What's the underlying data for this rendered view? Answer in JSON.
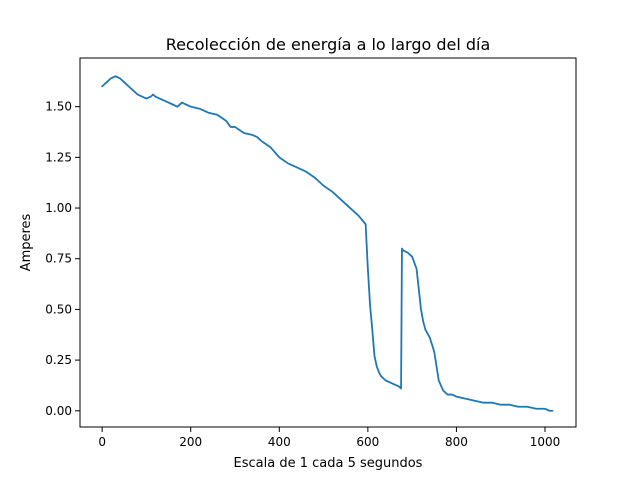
{
  "chart_data": {
    "type": "line",
    "title": "Recolección de energía a lo largo del día",
    "xlabel": "Escala de 1 cada 5 segundos",
    "ylabel": "Amperes",
    "xlim": [
      -50,
      1070
    ],
    "ylim": [
      -0.08,
      1.74
    ],
    "xticks": [
      0,
      200,
      400,
      600,
      800,
      1000
    ],
    "yticks": [
      0.0,
      0.25,
      0.5,
      0.75,
      1.0,
      1.25,
      1.5
    ],
    "xtick_labels": [
      "0",
      "200",
      "400",
      "600",
      "800",
      "1000"
    ],
    "ytick_labels": [
      "0.00",
      "0.25",
      "0.50",
      "0.75",
      "1.00",
      "1.25",
      "1.50"
    ],
    "grid": false,
    "color": "#1f77b4",
    "series": [
      {
        "x": [
          0,
          10,
          20,
          30,
          40,
          50,
          60,
          70,
          80,
          90,
          100,
          110,
          115,
          120,
          130,
          140,
          150,
          160,
          170,
          180,
          190,
          200,
          220,
          240,
          260,
          280,
          290,
          300,
          320,
          340,
          350,
          360,
          380,
          400,
          420,
          440,
          460,
          480,
          500,
          520,
          540,
          560,
          580,
          595,
          600,
          605,
          610,
          615,
          620,
          625,
          630,
          640,
          650,
          660,
          670,
          675,
          677,
          680,
          690,
          700,
          710,
          715,
          720,
          725,
          730,
          740,
          750,
          760,
          770,
          780,
          790,
          800,
          820,
          840,
          860,
          880,
          900,
          920,
          940,
          960,
          980,
          1000,
          1010,
          1017
        ],
        "y": [
          1.6,
          1.62,
          1.64,
          1.65,
          1.64,
          1.62,
          1.6,
          1.58,
          1.56,
          1.55,
          1.54,
          1.55,
          1.56,
          1.55,
          1.54,
          1.53,
          1.52,
          1.51,
          1.5,
          1.52,
          1.51,
          1.5,
          1.49,
          1.47,
          1.46,
          1.43,
          1.4,
          1.4,
          1.37,
          1.36,
          1.35,
          1.33,
          1.3,
          1.25,
          1.22,
          1.2,
          1.18,
          1.15,
          1.11,
          1.08,
          1.04,
          1.0,
          0.96,
          0.92,
          0.7,
          0.52,
          0.4,
          0.27,
          0.22,
          0.19,
          0.17,
          0.15,
          0.14,
          0.13,
          0.12,
          0.11,
          0.8,
          0.79,
          0.78,
          0.76,
          0.7,
          0.6,
          0.5,
          0.44,
          0.4,
          0.36,
          0.29,
          0.15,
          0.1,
          0.08,
          0.08,
          0.07,
          0.06,
          0.05,
          0.04,
          0.04,
          0.03,
          0.03,
          0.02,
          0.02,
          0.01,
          0.01,
          0.0,
          0.0
        ]
      }
    ]
  }
}
